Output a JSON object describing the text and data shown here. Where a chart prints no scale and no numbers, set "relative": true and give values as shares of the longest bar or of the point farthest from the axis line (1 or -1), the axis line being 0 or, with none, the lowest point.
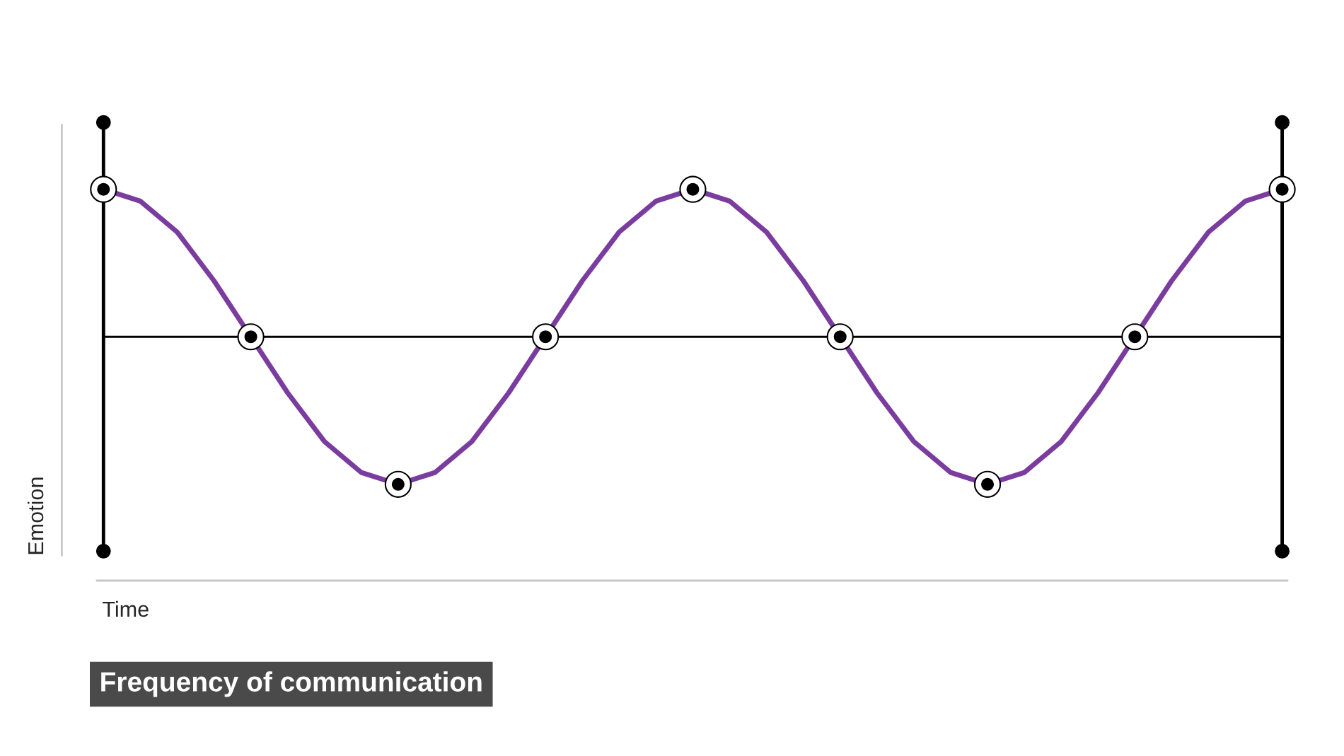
{
  "chart_data": {
    "type": "line",
    "relative": true,
    "ylabel": "Emotion",
    "annotations": [
      "Time",
      "Frequency of communication"
    ],
    "categories": [
      null,
      null,
      null,
      null,
      null,
      null,
      null,
      null,
      null,
      null,
      null,
      null,
      null,
      null,
      null,
      null,
      null,
      null,
      null,
      null,
      null,
      null,
      null,
      null,
      null,
      null,
      null,
      null,
      null,
      null,
      null,
      null,
      null
    ],
    "series": [
      {
        "color": "#7a3c9e",
        "line_style": "solid",
        "values": [
          1,
          0.92,
          0.71,
          0.38,
          0,
          -0.38,
          -0.71,
          -0.92,
          -1,
          -0.92,
          -0.71,
          -0.38,
          0,
          0.38,
          0.71,
          0.92,
          1,
          0.92,
          0.71,
          0.38,
          0,
          -0.38,
          -0.71,
          -0.92,
          -1,
          -0.92,
          -0.71,
          -0.38,
          0,
          0.38,
          0.71,
          0.92,
          1
        ]
      }
    ]
  }
}
